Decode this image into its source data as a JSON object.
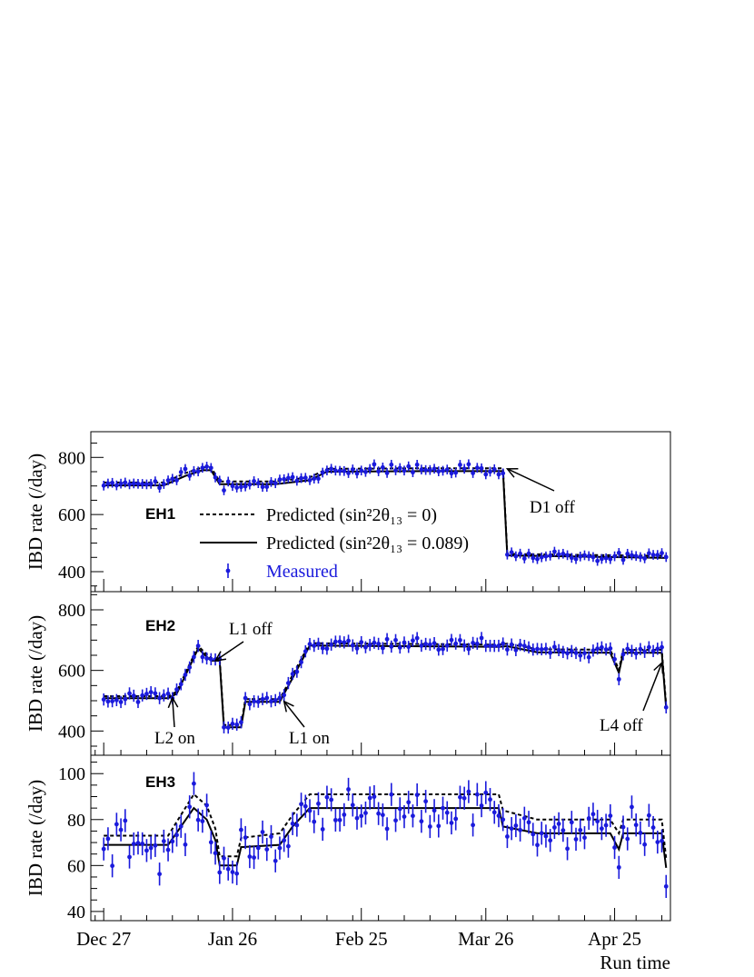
{
  "chart_data": {
    "type": "scatter",
    "xlabel": "Run time",
    "x_ticks": [
      "Dec 27",
      "Jan 26",
      "Feb 25",
      "Mar 26",
      "Apr 25"
    ],
    "x_tick_days": [
      0,
      30,
      60,
      89,
      119
    ],
    "x_range_days": [
      -3,
      132
    ],
    "legend": {
      "pred_null": "Predicted (sin²2θ₁₃ = 0)",
      "pred_fit": "Predicted (sin²2θ₁₃ = 0.089)",
      "measured": "Measured",
      "placement": "inside EH1 panel, center-left"
    },
    "colors": {
      "measured": "#1a1adc",
      "predicted": "#000000"
    },
    "panels": [
      {
        "name": "EH1",
        "ylabel": "IBD rate (/day)",
        "ylim": [
          330,
          890
        ],
        "yticks": [
          400,
          600,
          800
        ],
        "pred_null": [
          [
            0,
            712
          ],
          [
            14,
            712
          ],
          [
            19,
            745
          ],
          [
            23,
            765
          ],
          [
            25,
            765
          ],
          [
            27,
            716
          ],
          [
            30,
            716
          ],
          [
            40,
            716
          ],
          [
            48,
            730
          ],
          [
            52,
            760
          ],
          [
            75,
            762
          ],
          [
            93,
            762
          ],
          [
            94,
            462
          ],
          [
            131,
            455
          ]
        ],
        "pred_fit": [
          [
            0,
            702
          ],
          [
            14,
            702
          ],
          [
            19,
            735
          ],
          [
            23,
            755
          ],
          [
            25,
            755
          ],
          [
            27,
            706
          ],
          [
            30,
            706
          ],
          [
            40,
            706
          ],
          [
            48,
            720
          ],
          [
            52,
            750
          ],
          [
            75,
            752
          ],
          [
            93,
            752
          ],
          [
            94,
            457
          ],
          [
            131,
            448
          ]
        ],
        "measured_baseline": [
          [
            0,
            710
          ],
          [
            14,
            710
          ],
          [
            19,
            742
          ],
          [
            23,
            762
          ],
          [
            25,
            762
          ],
          [
            27,
            710
          ],
          [
            30,
            710
          ],
          [
            40,
            710
          ],
          [
            48,
            722
          ],
          [
            52,
            757
          ],
          [
            75,
            760
          ],
          [
            93,
            760
          ],
          [
            94,
            458
          ],
          [
            131,
            452
          ]
        ],
        "sigma": 16,
        "error": 17,
        "annotations": [
          {
            "text": "D1 off",
            "day": 94,
            "value": 760
          }
        ]
      },
      {
        "name": "EH2",
        "ylabel": "IBD rate (/day)",
        "ylim": [
          320,
          860
        ],
        "yticks": [
          400,
          600,
          800
        ],
        "pred_null": [
          [
            0,
            515
          ],
          [
            15,
            515
          ],
          [
            17,
            530
          ],
          [
            22,
            680
          ],
          [
            25,
            640
          ],
          [
            27,
            640
          ],
          [
            28,
            420
          ],
          [
            32,
            420
          ],
          [
            33,
            505
          ],
          [
            41,
            505
          ],
          [
            44,
            585
          ],
          [
            48,
            690
          ],
          [
            92,
            685
          ],
          [
            94,
            688
          ],
          [
            101,
            670
          ],
          [
            118,
            668
          ],
          [
            120,
            602
          ],
          [
            121,
            668
          ],
          [
            130,
            668
          ],
          [
            131,
            485
          ]
        ],
        "pred_fit": [
          [
            0,
            508
          ],
          [
            15,
            508
          ],
          [
            17,
            523
          ],
          [
            22,
            672
          ],
          [
            25,
            632
          ],
          [
            27,
            632
          ],
          [
            28,
            412
          ],
          [
            32,
            412
          ],
          [
            33,
            496
          ],
          [
            41,
            496
          ],
          [
            44,
            575
          ],
          [
            48,
            682
          ],
          [
            92,
            678
          ],
          [
            94,
            680
          ],
          [
            101,
            660
          ],
          [
            118,
            658
          ],
          [
            120,
            592
          ],
          [
            121,
            658
          ],
          [
            130,
            658
          ],
          [
            131,
            475
          ]
        ],
        "measured_baseline": [
          [
            0,
            513
          ],
          [
            15,
            513
          ],
          [
            17,
            528
          ],
          [
            22,
            678
          ],
          [
            25,
            638
          ],
          [
            27,
            638
          ],
          [
            28,
            416
          ],
          [
            32,
            416
          ],
          [
            33,
            500
          ],
          [
            41,
            500
          ],
          [
            44,
            580
          ],
          [
            48,
            688
          ],
          [
            92,
            684
          ],
          [
            94,
            686
          ],
          [
            101,
            665
          ],
          [
            118,
            664
          ],
          [
            120,
            596
          ],
          [
            121,
            664
          ],
          [
            130,
            664
          ],
          [
            131,
            480
          ]
        ],
        "sigma": 17,
        "error": 20,
        "annotations": [
          {
            "text": "L1 off",
            "day": 26,
            "value": 632
          },
          {
            "text": "L2 on",
            "day": 16,
            "value": 510
          },
          {
            "text": "L1 on",
            "day": 42,
            "value": 498
          },
          {
            "text": "L4 off",
            "day": 130,
            "value": 625
          }
        ]
      },
      {
        "name": "EH3",
        "ylabel": "IBD rate (/day)",
        "ylim": [
          36,
          108
        ],
        "yticks": [
          40,
          60,
          80,
          100
        ],
        "pred_null": [
          [
            0,
            73
          ],
          [
            15,
            73
          ],
          [
            18,
            82
          ],
          [
            21,
            91
          ],
          [
            24,
            86
          ],
          [
            26,
            76
          ],
          [
            27,
            64
          ],
          [
            31,
            64
          ],
          [
            32,
            72
          ],
          [
            41,
            74
          ],
          [
            44,
            82
          ],
          [
            48,
            91
          ],
          [
            92,
            91
          ],
          [
            93,
            84
          ],
          [
            101,
            80
          ],
          [
            118,
            80
          ],
          [
            120,
            74
          ],
          [
            121,
            80
          ],
          [
            130,
            80
          ],
          [
            131,
            63
          ]
        ],
        "pred_fit": [
          [
            0,
            69
          ],
          [
            15,
            69
          ],
          [
            18,
            77
          ],
          [
            21,
            85
          ],
          [
            24,
            80
          ],
          [
            26,
            71
          ],
          [
            27,
            60
          ],
          [
            31,
            60
          ],
          [
            32,
            68
          ],
          [
            41,
            69
          ],
          [
            44,
            77
          ],
          [
            48,
            85
          ],
          [
            92,
            85
          ],
          [
            93,
            77
          ],
          [
            101,
            74
          ],
          [
            118,
            74
          ],
          [
            120,
            67
          ],
          [
            121,
            74
          ],
          [
            130,
            74
          ],
          [
            131,
            59
          ]
        ],
        "measured_baseline": [
          [
            0,
            70
          ],
          [
            15,
            70
          ],
          [
            18,
            78
          ],
          [
            21,
            85
          ],
          [
            24,
            81
          ],
          [
            26,
            72
          ],
          [
            27,
            61
          ],
          [
            31,
            61
          ],
          [
            32,
            69
          ],
          [
            41,
            70
          ],
          [
            44,
            78
          ],
          [
            48,
            85
          ],
          [
            92,
            85
          ],
          [
            93,
            77
          ],
          [
            101,
            75
          ],
          [
            118,
            75
          ],
          [
            120,
            68
          ],
          [
            121,
            75
          ],
          [
            130,
            75
          ],
          [
            131,
            50
          ]
        ],
        "sigma": 8.5,
        "error": 5,
        "annotations": []
      }
    ]
  }
}
